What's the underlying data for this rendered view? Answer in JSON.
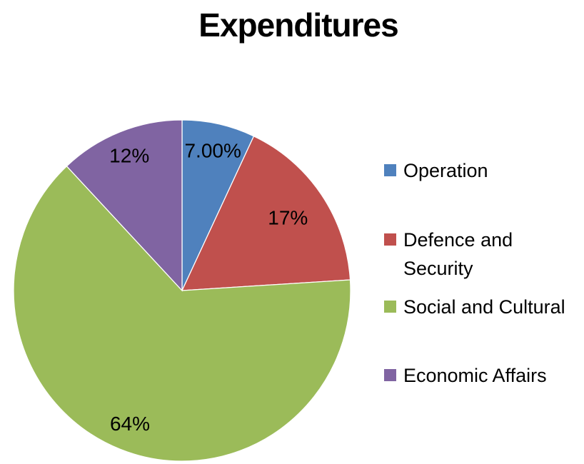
{
  "title": "Expenditures",
  "chart_data": {
    "type": "pie",
    "title": "Expenditures",
    "start_angle_deg": 0,
    "direction": "clockwise",
    "legend_position": "right",
    "slices": [
      {
        "label": "Operation",
        "value": 7,
        "display": "7.00%",
        "color": "#4F81BD"
      },
      {
        "label": "Defence and Security",
        "value": 17,
        "display": "17%",
        "color": "#C0504D"
      },
      {
        "label": "Social and Cultural",
        "value": 64,
        "display": "64%",
        "color": "#9BBB59"
      },
      {
        "label": "Economic Affairs",
        "value": 12,
        "display": "12%",
        "color": "#8064A2"
      }
    ]
  }
}
